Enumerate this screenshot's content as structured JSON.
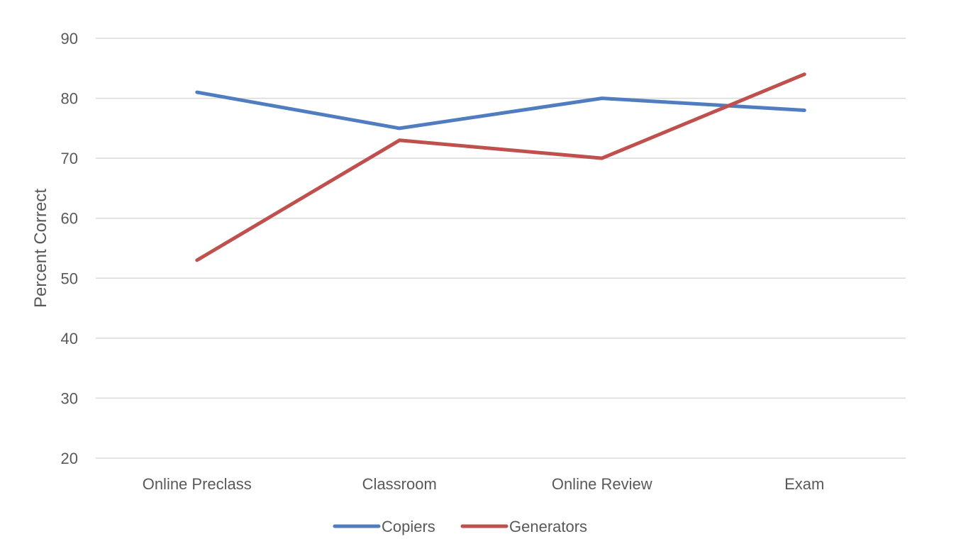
{
  "chart_data": {
    "type": "line",
    "title": "",
    "xlabel": "",
    "ylabel": "Percent Correct",
    "categories": [
      "Online Preclass",
      "Classroom",
      "Online Review",
      "Exam"
    ],
    "ylim": [
      20,
      90
    ],
    "yticks": [
      20,
      30,
      40,
      50,
      60,
      70,
      80,
      90
    ],
    "grid": true,
    "legend_position": "bottom",
    "series": [
      {
        "name": "Copiers",
        "color": "#4f7dbf",
        "values": [
          81,
          75,
          80,
          78
        ]
      },
      {
        "name": "Generators",
        "color": "#bf504d",
        "values": [
          53,
          73,
          70,
          84
        ]
      }
    ]
  }
}
